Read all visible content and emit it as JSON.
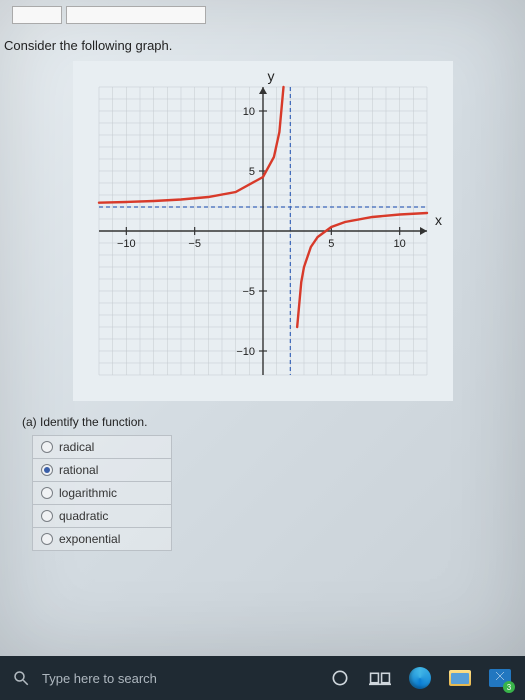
{
  "prompt": "Consider the following graph.",
  "question": "(a) Identify the function.",
  "options": [
    {
      "label": "radical",
      "selected": false
    },
    {
      "label": "rational",
      "selected": true
    },
    {
      "label": "logarithmic",
      "selected": false
    },
    {
      "label": "quadratic",
      "selected": false
    },
    {
      "label": "exponential",
      "selected": false
    }
  ],
  "search_placeholder": "Type here to search",
  "mail_badge": "3",
  "chart": {
    "type": "line",
    "background_color": "#e8eef2",
    "grid_color": "#c3c9cf",
    "axis_color": "#333333",
    "series_color": "#d83a2a",
    "asymptote_color": "#3a66b8",
    "asymptote_dash": "4 3",
    "tick_fontsize": 11,
    "axis_label_fontsize": 14,
    "xlim": [
      -12,
      12
    ],
    "ylim": [
      -12,
      12
    ],
    "xticks": [
      -10,
      -5,
      5,
      10
    ],
    "yticks": [
      -10,
      -5,
      5,
      10
    ],
    "xlabel": "x",
    "ylabel": "y",
    "vertical_asymptote_x": 2,
    "horizontal_asymptote_y": 2,
    "curve_left": [
      [
        -12,
        2.357
      ],
      [
        -10,
        2.417
      ],
      [
        -8,
        2.5
      ],
      [
        -6,
        2.625
      ],
      [
        -4,
        2.833
      ],
      [
        -2,
        3.25
      ],
      [
        0,
        4.5
      ],
      [
        0.8,
        6.167
      ],
      [
        1.2,
        8.25
      ],
      [
        1.5,
        12.0
      ]
    ],
    "curve_right": [
      [
        2.5,
        -8.0
      ],
      [
        2.8,
        -4.25
      ],
      [
        3.0,
        -3.0
      ],
      [
        3.5,
        -1.333
      ],
      [
        4.0,
        -0.5
      ],
      [
        5.0,
        0.333
      ],
      [
        6.0,
        0.75
      ],
      [
        8.0,
        1.167
      ],
      [
        10.0,
        1.375
      ],
      [
        12.0,
        1.5
      ]
    ]
  }
}
